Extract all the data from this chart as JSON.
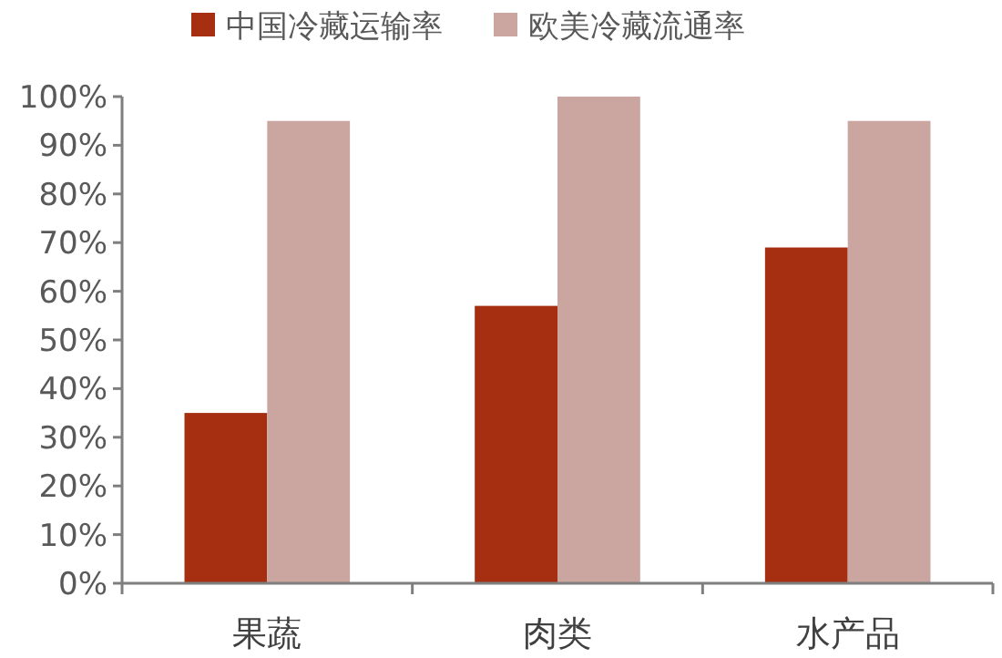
{
  "chart_data": {
    "type": "bar",
    "categories": [
      "果蔬",
      "肉类",
      "水产品"
    ],
    "series": [
      {
        "name": "中国冷藏运输率",
        "color": "#a52f10",
        "values": [
          35,
          57,
          69
        ]
      },
      {
        "name": "欧美冷藏流通率",
        "color": "#cba6a1",
        "values": [
          95,
          100,
          95
        ]
      }
    ],
    "ylim": [
      0,
      100
    ],
    "yticks": [
      {
        "value": 0,
        "label": "0%"
      },
      {
        "value": 10,
        "label": "10%"
      },
      {
        "value": 20,
        "label": "20%"
      },
      {
        "value": 30,
        "label": "30%"
      },
      {
        "value": 40,
        "label": "40%"
      },
      {
        "value": 50,
        "label": "50%"
      },
      {
        "value": 60,
        "label": "60%"
      },
      {
        "value": 70,
        "label": "70%"
      },
      {
        "value": 80,
        "label": "80%"
      },
      {
        "value": 90,
        "label": "90%"
      },
      {
        "value": 100,
        "label": "100%"
      }
    ],
    "legend": "top",
    "grid": false
  }
}
